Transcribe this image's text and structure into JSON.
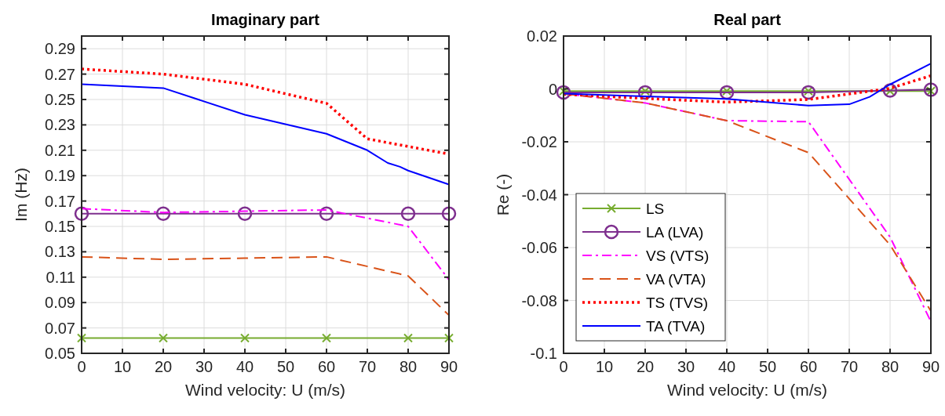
{
  "chart_data": [
    {
      "type": "line",
      "title": "Imaginary part",
      "xlabel": "Wind velocity: U (m/s)",
      "ylabel": "Im (Hz)",
      "xlim": [
        0,
        90
      ],
      "xticks": [
        0,
        10,
        20,
        30,
        40,
        50,
        60,
        70,
        80,
        90
      ],
      "ylim": [
        0.05,
        0.3
      ],
      "yticks": [
        0.05,
        0.07,
        0.09,
        0.11,
        0.13,
        0.15,
        0.17,
        0.19,
        0.21,
        0.23,
        0.25,
        0.27,
        0.29
      ],
      "grid": true,
      "legend": false,
      "series": [
        {
          "color": "#77ac30",
          "marker": "cross",
          "line_style": "solid",
          "x": [
            0,
            20,
            40,
            60,
            80,
            90
          ],
          "values": [
            0.062,
            0.062,
            0.062,
            0.062,
            0.062,
            0.062
          ]
        },
        {
          "color": "#7e2f8e",
          "marker": "circle",
          "line_style": "solid",
          "x": [
            0,
            20,
            40,
            60,
            80,
            90
          ],
          "values": [
            0.16,
            0.16,
            0.16,
            0.16,
            0.16,
            0.16
          ]
        },
        {
          "color": "#ff00ff",
          "marker": "none",
          "line_style": "dashdot",
          "x": [
            0,
            20,
            40,
            60,
            80,
            90
          ],
          "values": [
            0.164,
            0.161,
            0.162,
            0.163,
            0.15,
            0.108
          ]
        },
        {
          "color": "#d95319",
          "marker": "none",
          "line_style": "dashed",
          "x": [
            0,
            20,
            40,
            60,
            80,
            90
          ],
          "values": [
            0.126,
            0.124,
            0.125,
            0.126,
            0.111,
            0.08
          ]
        },
        {
          "color": "#ff0000",
          "marker": "none",
          "line_style": "dotted",
          "x": [
            0,
            20,
            40,
            60,
            70,
            80,
            90
          ],
          "values": [
            0.274,
            0.27,
            0.262,
            0.247,
            0.219,
            0.213,
            0.207
          ]
        },
        {
          "color": "#0000ff",
          "marker": "none",
          "line_style": "solid",
          "x": [
            0,
            20,
            40,
            60,
            70,
            75,
            78,
            80,
            90
          ],
          "values": [
            0.262,
            0.259,
            0.238,
            0.223,
            0.21,
            0.2,
            0.197,
            0.194,
            0.183
          ]
        }
      ]
    },
    {
      "type": "line",
      "title": "Real part",
      "xlabel": "Wind velocity: U (m/s)",
      "ylabel": "Re (-)",
      "xlim": [
        0,
        90
      ],
      "xticks": [
        0,
        10,
        20,
        30,
        40,
        50,
        60,
        70,
        80,
        90
      ],
      "ylim": [
        -0.1,
        0.02
      ],
      "yticks": [
        -0.1,
        -0.08,
        -0.06,
        -0.04,
        -0.02,
        0,
        0.02
      ],
      "grid": true,
      "legend": "bottom left",
      "series": [
        {
          "name": "LS",
          "color": "#77ac30",
          "marker": "cross",
          "line_style": "solid",
          "x": [
            0,
            20,
            40,
            60,
            80,
            90
          ],
          "values": [
            -0.0008,
            -0.0008,
            -0.0008,
            -0.0008,
            -0.0008,
            -0.0008
          ]
        },
        {
          "name": "LA (LVA)",
          "color": "#7e2f8e",
          "marker": "circle",
          "line_style": "solid",
          "x": [
            0,
            20,
            40,
            60,
            80,
            90
          ],
          "values": [
            -0.0013,
            -0.0013,
            -0.0013,
            -0.0013,
            -0.0006,
            -0.0003
          ]
        },
        {
          "name": "VS (VTS)",
          "color": "#ff00ff",
          "marker": "none",
          "line_style": "dashdot",
          "x": [
            0,
            20,
            40,
            60,
            80,
            90
          ],
          "values": [
            -0.0018,
            -0.0053,
            -0.012,
            -0.0124,
            -0.056,
            -0.088
          ]
        },
        {
          "name": "VA (VTA)",
          "color": "#d95319",
          "marker": "none",
          "line_style": "dashed",
          "x": [
            0,
            20,
            40,
            60,
            80,
            90
          ],
          "values": [
            -0.0018,
            -0.0053,
            -0.012,
            -0.0241,
            -0.059,
            -0.084
          ]
        },
        {
          "name": "TS (TVS)",
          "color": "#ff0000",
          "marker": "none",
          "line_style": "dotted",
          "x": [
            0,
            20,
            40,
            60,
            80,
            90
          ],
          "values": [
            -0.002,
            -0.0036,
            -0.005,
            -0.004,
            0.0002,
            0.005
          ]
        },
        {
          "name": "TA (TVA)",
          "color": "#0000ff",
          "marker": "none",
          "line_style": "solid",
          "x": [
            0,
            20,
            40,
            60,
            70,
            75,
            80,
            90
          ],
          "values": [
            -0.0018,
            -0.0028,
            -0.0038,
            -0.0063,
            -0.0058,
            -0.003,
            0.0017,
            0.0096
          ]
        }
      ]
    }
  ]
}
